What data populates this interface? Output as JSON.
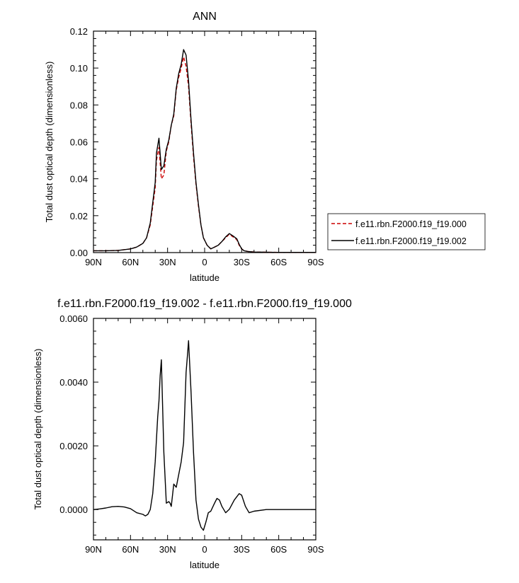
{
  "chart_data": [
    {
      "type": "line",
      "title": "ANN",
      "xlabel": "latitude",
      "ylabel": "Total dust optical depth (dimensionless)",
      "xlim": [
        90,
        -90
      ],
      "ylim": [
        0,
        0.12
      ],
      "x_ticks": [
        90,
        60,
        30,
        0,
        -30,
        -60,
        -90
      ],
      "x_tick_labels": [
        "90N",
        "60N",
        "30N",
        "0",
        "30S",
        "60S",
        "90S"
      ],
      "y_ticks": [
        0,
        0.02,
        0.04,
        0.06,
        0.08,
        0.1,
        0.12
      ],
      "y_tick_labels": [
        "0.00",
        "0.02",
        "0.04",
        "0.06",
        "0.08",
        "0.10",
        "0.12"
      ],
      "legend_position": "right",
      "series": [
        {
          "name": "f.e11.rbn.F2000.f19_f19.000",
          "color": "#cc0000",
          "dash": "dashed",
          "x": [
            90,
            80,
            70,
            60,
            55,
            50,
            47,
            44,
            42,
            40,
            39,
            37,
            35,
            33,
            31,
            29,
            27,
            25,
            23,
            21,
            19,
            17,
            15,
            13,
            11,
            9,
            7,
            5,
            3,
            1,
            -2,
            -5,
            -8,
            -11,
            -14,
            -17,
            -20,
            -23,
            -26,
            -28,
            -30,
            -32,
            -35,
            -40,
            -50,
            -60,
            -70,
            -80,
            -90
          ],
          "y": [
            0.001,
            0.001,
            0.0012,
            0.002,
            0.003,
            0.005,
            0.008,
            0.015,
            0.025,
            0.035,
            0.05,
            0.057,
            0.04,
            0.042,
            0.055,
            0.06,
            0.069,
            0.074,
            0.088,
            0.095,
            0.1,
            0.106,
            0.101,
            0.09,
            0.07,
            0.052,
            0.037,
            0.025,
            0.015,
            0.008,
            0.004,
            0.002,
            0.003,
            0.004,
            0.006,
            0.008,
            0.01,
            0.0085,
            0.007,
            0.004,
            0.002,
            0.001,
            0.0006,
            0.0003,
            0.0002,
            0.0001,
            0.0001,
            0.0001,
            0.0001
          ]
        },
        {
          "name": "f.e11.rbn.F2000.f19_f19.002",
          "color": "#000000",
          "dash": "solid",
          "x": [
            90,
            80,
            70,
            60,
            55,
            50,
            47,
            44,
            42,
            40,
            39,
            37,
            35,
            33,
            31,
            29,
            27,
            25,
            23,
            21,
            19,
            17,
            15,
            13,
            11,
            9,
            7,
            5,
            3,
            1,
            -2,
            -5,
            -8,
            -11,
            -14,
            -17,
            -20,
            -23,
            -26,
            -28,
            -30,
            -32,
            -35,
            -40,
            -50,
            -60,
            -70,
            -80,
            -90
          ],
          "y": [
            0.001,
            0.001,
            0.0012,
            0.002,
            0.003,
            0.005,
            0.008,
            0.016,
            0.027,
            0.038,
            0.054,
            0.062,
            0.045,
            0.047,
            0.056,
            0.061,
            0.069,
            0.075,
            0.089,
            0.097,
            0.102,
            0.11,
            0.107,
            0.093,
            0.072,
            0.054,
            0.038,
            0.026,
            0.015,
            0.008,
            0.004,
            0.002,
            0.003,
            0.004,
            0.006,
            0.0085,
            0.0103,
            0.009,
            0.0075,
            0.0045,
            0.002,
            0.001,
            0.0006,
            0.0003,
            0.0002,
            0.0001,
            0.0001,
            0.0001,
            0.0001
          ]
        }
      ]
    },
    {
      "type": "line",
      "title": "f.e11.rbn.F2000.f19_f19.002 - f.e11.rbn.F2000.f19_f19.000",
      "xlabel": "latitude",
      "ylabel": "Total dust optical depth (dimensionless)",
      "xlim": [
        90,
        -90
      ],
      "ylim": [
        -0.00095,
        0.006
      ],
      "x_ticks": [
        90,
        60,
        30,
        0,
        -30,
        -60,
        -90
      ],
      "x_tick_labels": [
        "90N",
        "60N",
        "30N",
        "0",
        "30S",
        "60S",
        "90S"
      ],
      "y_ticks": [
        0,
        0.002,
        0.004,
        0.006
      ],
      "y_tick_labels": [
        "0.0000",
        "0.0020",
        "0.0040",
        "0.0060"
      ],
      "series": [
        {
          "color": "#000000",
          "dash": "solid",
          "x": [
            90,
            85,
            80,
            75,
            70,
            65,
            60,
            55,
            50,
            48,
            46,
            44,
            42,
            40,
            38,
            37,
            36,
            35,
            33,
            31,
            29,
            28,
            27,
            25,
            23,
            21,
            19,
            17,
            15,
            14,
            13,
            11,
            9,
            7,
            5,
            3,
            1,
            -1,
            -3,
            -5,
            -8,
            -10,
            -12,
            -14,
            -17,
            -20,
            -24,
            -28,
            -30,
            -33,
            -36,
            -40,
            -50,
            -60,
            -70,
            -80,
            -90
          ],
          "y": [
            0,
            2e-05,
            5e-05,
            9e-05,
            0.0001,
            8e-05,
            3e-05,
            -0.0001,
            -0.00015,
            -0.0002,
            -0.00015,
            0,
            0.0005,
            0.0015,
            0.0029,
            0.0034,
            0.0042,
            0.0047,
            0.0018,
            0.0002,
            0.00025,
            0.0002,
            0.0001,
            0.0008,
            0.0007,
            0.0011,
            0.0015,
            0.0021,
            0.0043,
            0.0048,
            0.0053,
            0.0037,
            0.0018,
            0.0003,
            -0.0003,
            -0.00055,
            -0.00065,
            -0.0004,
            -0.0001,
            -5e-05,
            0.0002,
            0.00035,
            0.0003,
            0.0001,
            -0.0001,
            1e-05,
            0.0003,
            0.0005,
            0.00045,
            0.0001,
            -0.0001,
            -5e-05,
            0,
            0,
            0,
            0,
            0
          ]
        }
      ]
    }
  ]
}
